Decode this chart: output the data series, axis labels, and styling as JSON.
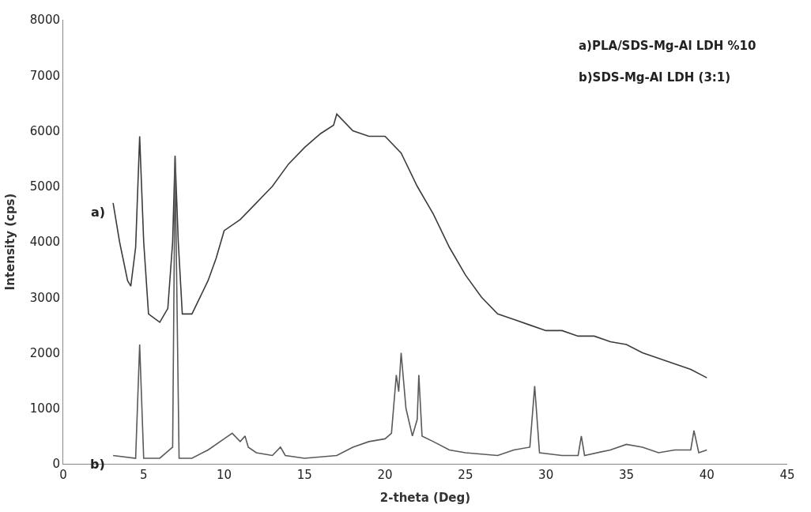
{
  "chart_data": {
    "type": "line",
    "xlabel": "2-theta (Deg)",
    "ylabel": "Intensity (cps)",
    "xlim": [
      0,
      45
    ],
    "xticks": [
      0,
      5,
      10,
      15,
      20,
      25,
      30,
      35,
      40,
      45
    ],
    "ylim": [
      0,
      8000
    ],
    "yticks": [
      0,
      1000,
      2000,
      3000,
      4000,
      5000,
      6000,
      7000,
      8000
    ],
    "marker": "none",
    "line_style": "solid",
    "annotations": [
      "a)PLA/SDS-Mg-Al LDH %10",
      "b)SDS-Mg-Al LDH (3:1)",
      "a)",
      "b)"
    ],
    "series": [
      {
        "color": "#3c3c3c",
        "x": [
          3.1,
          3.5,
          4.0,
          4.2,
          4.5,
          4.75,
          5.0,
          5.3,
          6.0,
          6.5,
          6.8,
          6.95,
          7.15,
          7.4,
          8,
          9,
          9.5,
          10,
          11,
          12,
          13,
          14,
          15,
          16,
          16.8,
          17,
          18,
          19,
          20,
          21,
          22,
          23,
          24,
          25,
          26,
          27,
          28,
          29,
          30,
          31,
          32,
          33,
          34,
          35,
          36,
          37,
          38,
          39,
          40
        ],
        "values": [
          4700,
          4000,
          3300,
          3200,
          3900,
          5900,
          4000,
          2700,
          2550,
          2800,
          4000,
          5550,
          4000,
          2700,
          2700,
          3300,
          3700,
          4200,
          4400,
          4700,
          5000,
          5400,
          5700,
          5950,
          6100,
          6300,
          6000,
          5900,
          5900,
          5600,
          5000,
          4500,
          3900,
          3400,
          3000,
          2700,
          2600,
          2500,
          2400,
          2400,
          2300,
          2300,
          2200,
          2150,
          2000,
          1900,
          1800,
          1700,
          1550
        ]
      },
      {
        "color": "#5a5a5a",
        "x": [
          3.1,
          4.5,
          4.75,
          5.0,
          6,
          6.8,
          6.95,
          7.2,
          8,
          9,
          10,
          10.5,
          11,
          11.3,
          11.5,
          12,
          13,
          13.5,
          13.8,
          15,
          17,
          18,
          19,
          20,
          20.4,
          20.7,
          20.85,
          21,
          21.3,
          21.7,
          22,
          22.1,
          22.3,
          23,
          24,
          25,
          27,
          28,
          29,
          29.3,
          29.6,
          31,
          32,
          32.2,
          32.4,
          34,
          35,
          36,
          37,
          38,
          39,
          39.2,
          39.5,
          40
        ],
        "values": [
          150,
          100,
          2150,
          100,
          100,
          300,
          5500,
          100,
          100,
          250,
          450,
          550,
          400,
          500,
          300,
          200,
          150,
          300,
          150,
          100,
          150,
          300,
          400,
          450,
          550,
          1600,
          1300,
          2000,
          1000,
          500,
          800,
          1600,
          500,
          400,
          250,
          200,
          150,
          250,
          300,
          1400,
          200,
          150,
          150,
          500,
          150,
          250,
          350,
          300,
          200,
          250,
          250,
          600,
          200,
          250
        ]
      }
    ]
  }
}
